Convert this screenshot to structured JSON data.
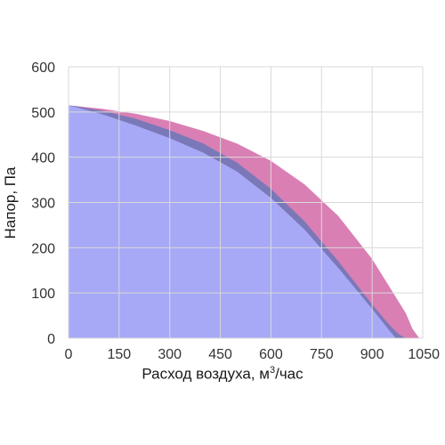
{
  "chart_data": {
    "type": "area",
    "title": "",
    "xlabel": "Расход воздуха, м",
    "xlabel_sup": "3",
    "xlabel_suffix": "/час",
    "ylabel": "Напор, Па",
    "xlim": [
      0,
      1050
    ],
    "ylim": [
      0,
      600
    ],
    "xticks": [
      "0",
      "150",
      "300",
      "450",
      "600",
      "750",
      "900",
      "1050"
    ],
    "yticks": [
      "0",
      "100",
      "200",
      "300",
      "400",
      "500",
      "600"
    ],
    "grid": true,
    "legend": "none",
    "series": [
      {
        "color": "#d97fb4",
        "x": [
          0,
          100,
          200,
          300,
          400,
          500,
          600,
          700,
          800,
          900,
          950,
          1000,
          1020,
          1040
        ],
        "y": [
          515,
          507,
          496,
          480,
          458,
          430,
          392,
          340,
          270,
          175,
          115,
          55,
          20,
          0
        ]
      },
      {
        "color": "#7b78b8",
        "x": [
          0,
          100,
          200,
          300,
          400,
          500,
          600,
          700,
          800,
          900,
          950,
          980,
          1000
        ],
        "y": [
          515,
          503,
          485,
          460,
          430,
          388,
          330,
          258,
          170,
          75,
          30,
          8,
          0
        ]
      },
      {
        "color": "#a7a9f7",
        "x": [
          0,
          100,
          200,
          300,
          400,
          500,
          600,
          700,
          800,
          900,
          950,
          970
        ],
        "y": [
          515,
          495,
          470,
          442,
          410,
          368,
          310,
          240,
          155,
          65,
          18,
          0
        ]
      }
    ]
  }
}
